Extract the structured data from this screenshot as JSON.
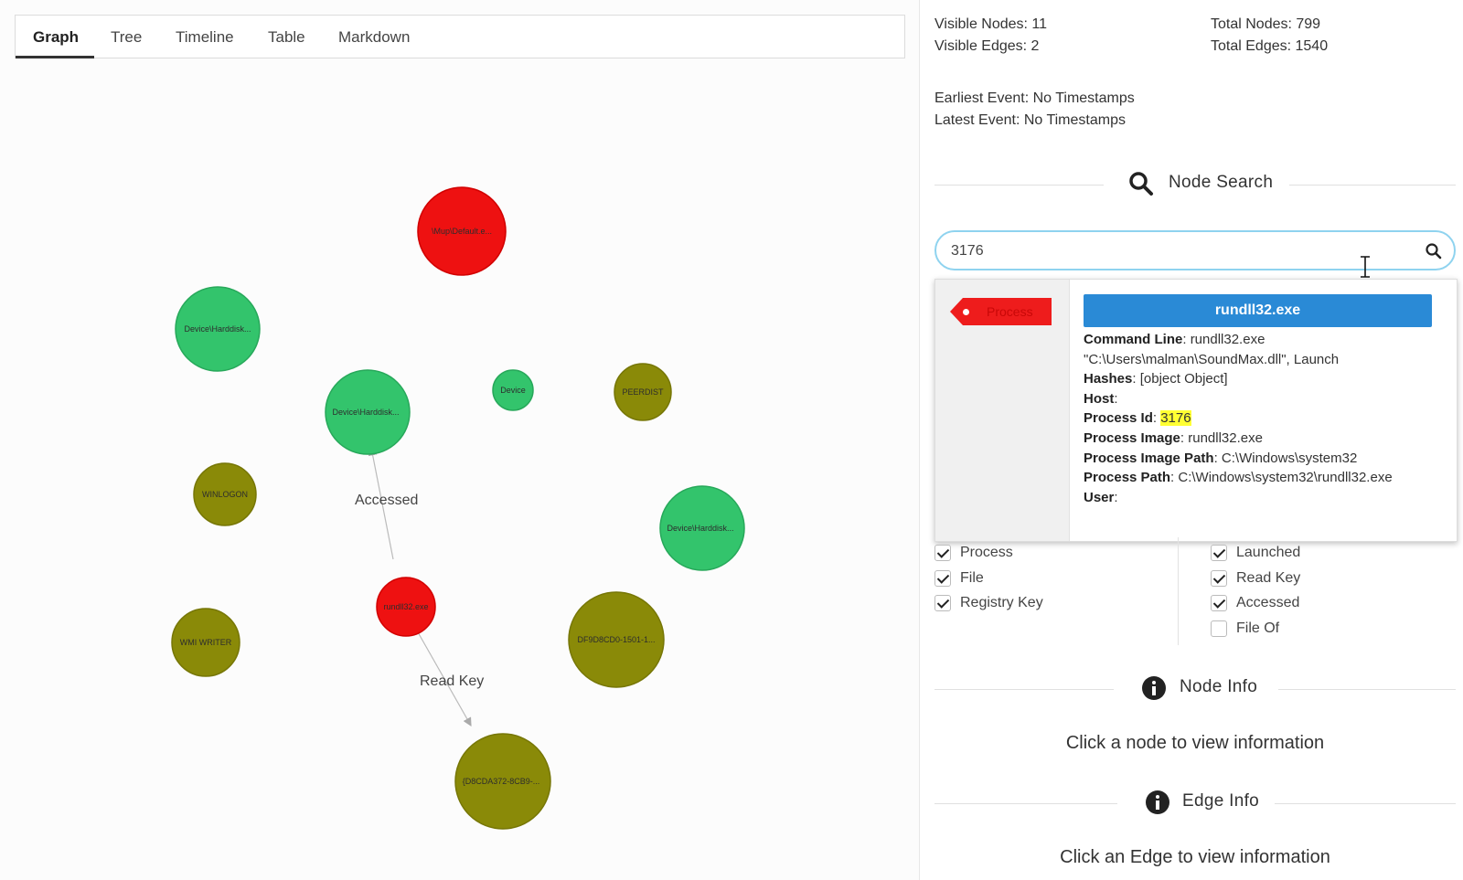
{
  "tabs": [
    {
      "label": "Graph",
      "active": true
    },
    {
      "label": "Tree"
    },
    {
      "label": "Timeline"
    },
    {
      "label": "Table"
    },
    {
      "label": "Markdown"
    }
  ],
  "graph": {
    "nodes": [
      {
        "id": "n1",
        "label": "\\Mup\\Default.e...",
        "type": "Process",
        "color": "#ee1111"
      },
      {
        "id": "n2",
        "label": "Device\\Harddisk...",
        "type": "File",
        "color": "#33c46c"
      },
      {
        "id": "n3",
        "label": "Device\\Harddisk...",
        "type": "File",
        "color": "#33c46c"
      },
      {
        "id": "n4",
        "label": "Device",
        "type": "File",
        "color": "#33c46c"
      },
      {
        "id": "n5",
        "label": "PEERDIST",
        "type": "Registry Key",
        "color": "#8a8a08"
      },
      {
        "id": "n6",
        "label": "WINLOGON",
        "type": "Registry Key",
        "color": "#8a8a08"
      },
      {
        "id": "n7",
        "label": "Device\\Harddisk...",
        "type": "File",
        "color": "#33c46c"
      },
      {
        "id": "n8",
        "label": "rundll32.exe",
        "type": "Process",
        "color": "#ee1111"
      },
      {
        "id": "n9",
        "label": "WMI WRITER",
        "type": "Registry Key",
        "color": "#8a8a08"
      },
      {
        "id": "n10",
        "label": "DF9D8CD0-1501-1...",
        "type": "Registry Key",
        "color": "#8a8a08"
      },
      {
        "id": "n11",
        "label": "{D8CDA372-8CB9-...",
        "type": "Registry Key",
        "color": "#8a8a08"
      }
    ],
    "edges": [
      {
        "from": "n8",
        "to": "n3",
        "label": "Accessed"
      },
      {
        "from": "n8",
        "to": "n11",
        "label": "Read Key"
      }
    ]
  },
  "stats": {
    "visible_nodes": "Visible Nodes: 11",
    "visible_edges": "Visible Edges: 2",
    "total_nodes": "Total Nodes: 799",
    "total_edges": "Total Edges: 1540",
    "earliest_event": "Earliest Event: No Timestamps",
    "latest_event": "Latest Event: No Timestamps"
  },
  "node_search": {
    "title": "Node Search",
    "query": "3176",
    "result": {
      "tag": "Process",
      "title": "rundll32.exe",
      "props": [
        {
          "key": "Command Line",
          "value": "rundll32.exe \"C:\\Users\\malman\\SoundMax.dll\", Launch"
        },
        {
          "key": "Hashes",
          "value": "[object Object]"
        },
        {
          "key": "Host",
          "value": ""
        },
        {
          "key": "Process Id",
          "value": "3176",
          "highlight": true
        },
        {
          "key": "Process Image",
          "value": "rundll32.exe"
        },
        {
          "key": "Process Image Path",
          "value": "C:\\Windows\\system32"
        },
        {
          "key": "Process Path",
          "value": "C:\\Windows\\system32\\rundll32.exe"
        },
        {
          "key": "User",
          "value": ""
        }
      ]
    }
  },
  "filters": {
    "node_types": [
      {
        "label": "Process",
        "checked": true
      },
      {
        "label": "File",
        "checked": true
      },
      {
        "label": "Registry Key",
        "checked": true
      }
    ],
    "edge_types": [
      {
        "label": "Launched",
        "checked": true
      },
      {
        "label": "Read Key",
        "checked": true
      },
      {
        "label": "Accessed",
        "checked": true
      },
      {
        "label": "File Of",
        "checked": false
      }
    ]
  },
  "node_info": {
    "title": "Node Info",
    "message": "Click a node to view information"
  },
  "edge_info": {
    "title": "Edge Info",
    "message": "Click an Edge to view information"
  }
}
